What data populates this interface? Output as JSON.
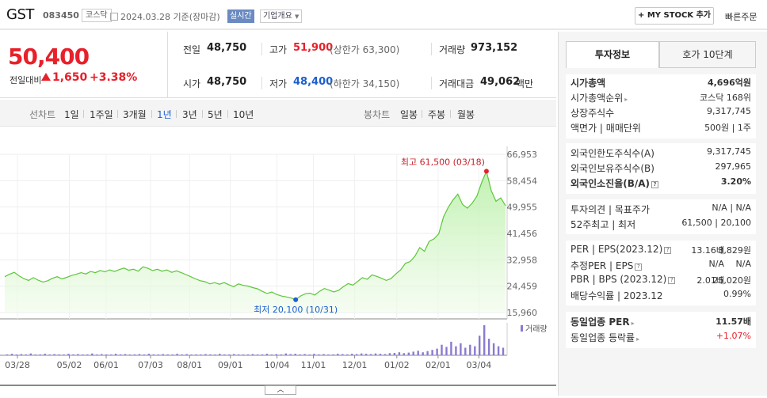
{
  "header": {
    "name": "GST",
    "code": "083450",
    "market": "코스닥",
    "date": "2024.03.28",
    "date_suffix": "기준(장마감)",
    "realtime": "실시간",
    "corp_info": "기업개요",
    "mystock": "+ MY STOCK 추가",
    "quick_order": "빠른주문"
  },
  "price": {
    "current": "50,400",
    "change_label": "전일대비",
    "change": "1,650",
    "change_pct": "+3.38%"
  },
  "quote": {
    "prev_label": "전일",
    "prev": "48,750",
    "high_label": "고가",
    "high": "51,900",
    "upper_limit": "(상한가 63,300)",
    "volume_label": "거래량",
    "volume": "973,152",
    "open_label": "시가",
    "open": "48,750",
    "low_label": "저가",
    "low": "48,400",
    "lower_limit": "(하한가 34,150)",
    "amount_label": "거래대금",
    "amount": "49,062",
    "amount_unit": "백만"
  },
  "periods": {
    "line_label": "선차트",
    "items": [
      "1일",
      "1주일",
      "3개월",
      "1년",
      "3년",
      "5년",
      "10년"
    ],
    "active": "1년",
    "candle_label": "봉차트",
    "candle_items": [
      "일봉",
      "주봉",
      "월봉"
    ]
  },
  "chart_data": {
    "type": "area",
    "y_ticks": [
      "66,953",
      "58,454",
      "49,955",
      "41,456",
      "32,958",
      "24,459",
      "15,960"
    ],
    "ylim": [
      15960,
      66953
    ],
    "x_ticks": [
      "03/28",
      "05/02",
      "06/01",
      "07/03",
      "08/01",
      "09/01",
      "10/04",
      "11/01",
      "12/01",
      "01/02",
      "02/01",
      "03/04"
    ],
    "high_annotation": "최고 61,500 (03/18)",
    "low_annotation": "최저 20,100 (10/31)",
    "volume_label": "거래량",
    "series": [
      {
        "values": [
          27500,
          28300,
          28900,
          27800,
          26900,
          26300,
          27200,
          26400,
          25800,
          26200,
          27000,
          27500,
          26800,
          27300,
          27900,
          28300,
          28800,
          28400,
          29200,
          28800,
          29500,
          29100,
          29700,
          29200,
          29800,
          30300,
          29600,
          29900,
          29300,
          30700,
          30200,
          29500,
          29900,
          29300,
          29700,
          28900,
          29400,
          28800,
          28200,
          27500,
          26800,
          26200,
          25900,
          25200,
          25600,
          25100,
          25600,
          24900,
          24300,
          25200,
          24700,
          24500,
          24000,
          23600,
          22800,
          22100,
          22600,
          21800,
          21300,
          21000,
          20700,
          20100,
          21300,
          22000,
          22200,
          21600,
          22800,
          23700,
          23200,
          22600,
          23100,
          24300,
          25300,
          24800,
          26000,
          27200,
          26700,
          28100,
          27600,
          27000,
          26300,
          26900,
          28400,
          29700,
          31800,
          32400,
          34100,
          36900,
          35700,
          38900,
          39700,
          41300,
          46800,
          49900,
          52300,
          54100,
          50800,
          49600,
          51200,
          53500,
          57900,
          61500,
          55300,
          51800,
          52900,
          50400
        ]
      }
    ],
    "volume_values": [
      0.03,
      0.05,
      0.02,
      0.04,
      0.03,
      0.06,
      0.02,
      0.03,
      0.05,
      0.02,
      0.04,
      0.03,
      0.02,
      0.05,
      0.03,
      0.04,
      0.02,
      0.03,
      0.06,
      0.02,
      0.04,
      0.03,
      0.02,
      0.05,
      0.03,
      0.04,
      0.02,
      0.03,
      0.04,
      0.02,
      0.05,
      0.03,
      0.02,
      0.04,
      0.03,
      0.02,
      0.05,
      0.03,
      0.04,
      0.02,
      0.03,
      0.02,
      0.04,
      0.03,
      0.02,
      0.05,
      0.03,
      0.02,
      0.04,
      0.03,
      0.02,
      0.03,
      0.04,
      0.02,
      0.03,
      0.05,
      0.02,
      0.04,
      0.03,
      0.06,
      0.04,
      0.05,
      0.03,
      0.04,
      0.02,
      0.05,
      0.03,
      0.04,
      0.02,
      0.03,
      0.05,
      0.04,
      0.03,
      0.05,
      0.04,
      0.06,
      0.05,
      0.04,
      0.06,
      0.05,
      0.04,
      0.07,
      0.08,
      0.1,
      0.07,
      0.09,
      0.12,
      0.15,
      0.1,
      0.14,
      0.18,
      0.22,
      0.35,
      0.28,
      0.45,
      0.3,
      0.4,
      0.25,
      0.35,
      0.3,
      0.65,
      1.0,
      0.55,
      0.4,
      0.3,
      0.25
    ]
  },
  "side": {
    "tabs": [
      "투자정보",
      "호가 10단계"
    ],
    "group1": [
      {
        "label": "시가총액",
        "value": "4,696억원",
        "bold": true
      },
      {
        "label": "시가총액순위",
        "value": "코스닥 168위"
      },
      {
        "label": "상장주식수",
        "value": "9,317,745"
      },
      {
        "label": "액면가 | 매매단위",
        "value": "500원 | 1주"
      }
    ],
    "group2": [
      {
        "label": "외국인한도주식수(A)",
        "value": "9,317,745"
      },
      {
        "label": "외국인보유주식수(B)",
        "value": "297,965"
      },
      {
        "label": "외국인소진율(B/A)",
        "value": "3.20%",
        "bold": true
      }
    ],
    "group3": [
      {
        "label": "투자의견 | 목표주가",
        "value": "N/A | N/A"
      },
      {
        "label": "52주최고 | 최저",
        "value": "61,500 | 20,100"
      }
    ],
    "group4": [
      {
        "label": "PER | EPS(2023.12)",
        "v1": "13.16배",
        "v2": "3,829원"
      },
      {
        "label": "추정PER | EPS",
        "v1": "N/A",
        "v2": "N/A"
      },
      {
        "label": "PBR | BPS (2023.12)",
        "v1": "2.01배",
        "v2": "25,020원"
      },
      {
        "label": "배당수익률 | 2023.12",
        "v1": "",
        "v2": "0.99%"
      }
    ],
    "group5": [
      {
        "label": "동일업종 PER",
        "value": "11.57배",
        "bold": true
      },
      {
        "label": "동일업종 등락률",
        "value": "+1.07%"
      }
    ]
  }
}
